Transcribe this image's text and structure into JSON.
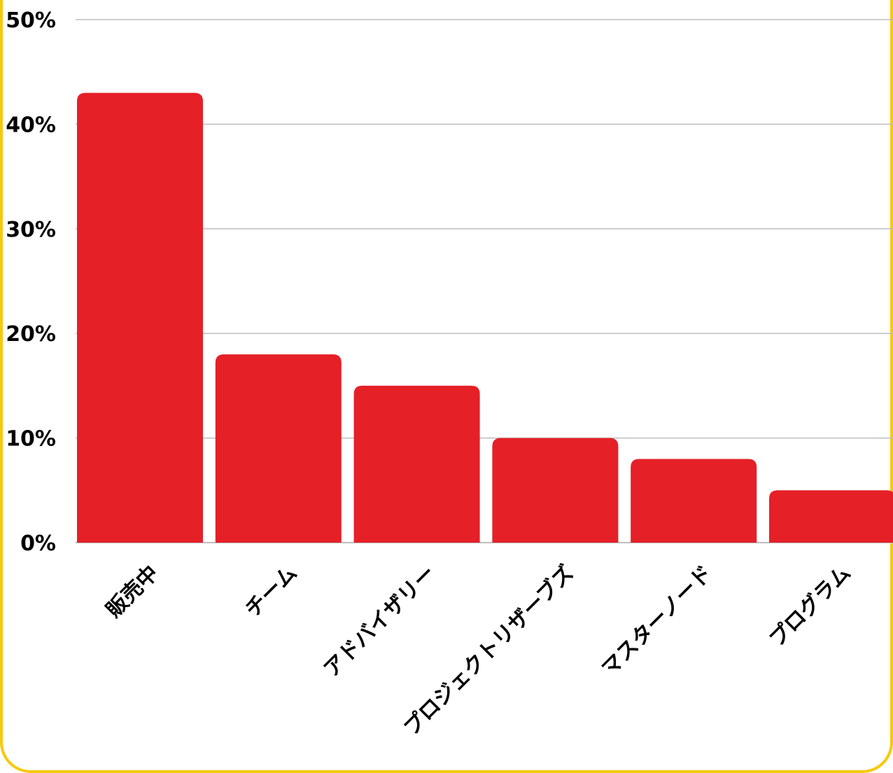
{
  "chart_data": {
    "type": "bar",
    "categories": [
      "販売中",
      "チーム",
      "アドバイザリー",
      "プロジェクトリザーブズ",
      "マスターノード",
      "プログラム"
    ],
    "values": [
      43,
      18,
      15,
      10,
      8,
      5
    ],
    "yticks": [
      "0%",
      "10%",
      "20%",
      "30%",
      "40%",
      "50%"
    ],
    "ylim": [
      0,
      50
    ],
    "grid": true,
    "xlabel": "",
    "ylabel": ""
  },
  "colors": {
    "bar": "#E52027",
    "grid": "#BDBDBD",
    "frame": "#F6C90E"
  }
}
